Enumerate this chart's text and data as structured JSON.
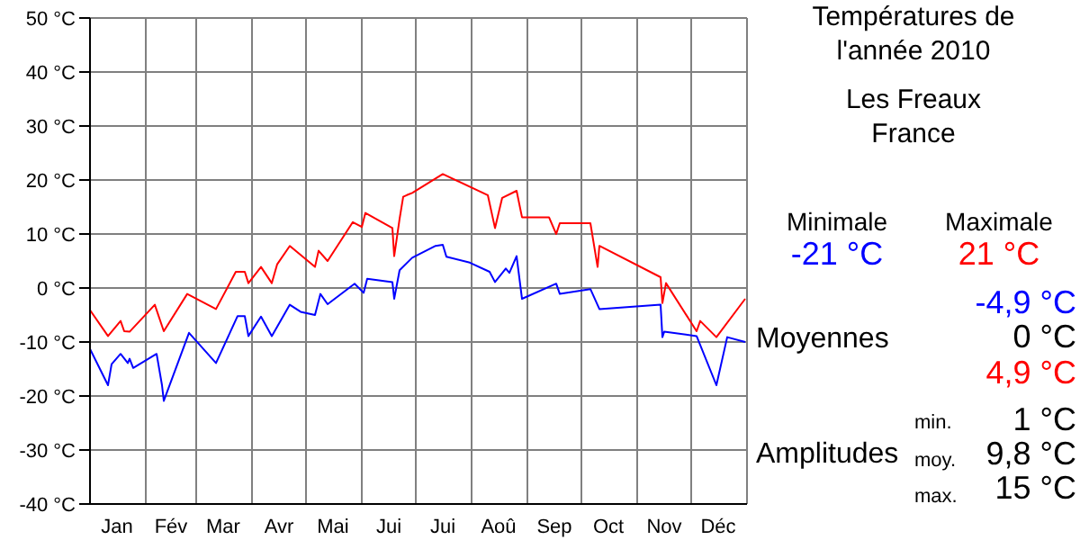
{
  "chart_data": {
    "type": "line",
    "title": "Températures de\nl'année 2010",
    "subtitle": "Les Freaux\nFrance",
    "series": [
      {
        "color": "#ff0000",
        "x": [
          "2010-01-01",
          "2010-01-11",
          "2010-01-18",
          "2010-01-20",
          "2010-01-23",
          "2010-02-06",
          "2010-02-11",
          "2010-02-24",
          "2010-03-12",
          "2010-03-23",
          "2010-03-28",
          "2010-03-30",
          "2010-04-06",
          "2010-04-12",
          "2010-04-15",
          "2010-04-22",
          "2010-05-06",
          "2010-05-08",
          "2010-05-13",
          "2010-05-27",
          "2010-06-01",
          "2010-06-03",
          "2010-06-18",
          "2010-06-19",
          "2010-06-22",
          "2010-06-24",
          "2010-06-26",
          "2010-06-29",
          "2010-07-16",
          "2010-08-10",
          "2010-08-14",
          "2010-08-18",
          "2010-08-26",
          "2010-08-29",
          "2010-09-13",
          "2010-09-17",
          "2010-09-19",
          "2010-10-06",
          "2010-10-10",
          "2010-10-11",
          "2010-11-14",
          "2010-11-15",
          "2010-11-17",
          "2010-12-04",
          "2010-12-06",
          "2010-12-15",
          "2010-12-31"
        ],
        "values": [
          -4.1,
          -8.9,
          -6.1,
          -8,
          -8.1,
          -3.1,
          -8,
          -1.1,
          -3.9,
          3,
          3,
          0.9,
          3.9,
          0.9,
          4.4,
          7.8,
          3.9,
          6.9,
          5,
          12.2,
          11.3,
          13.9,
          11.1,
          5.9,
          12.8,
          16.9,
          17.2,
          17.6,
          21.1,
          17.2,
          11.1,
          16.7,
          18,
          13.1,
          13.1,
          10,
          12,
          12,
          3.9,
          7.8,
          2,
          -2.8,
          0.9,
          -8,
          -6.1,
          -9.1,
          -2
        ]
      },
      {
        "color": "#0000ff",
        "x": [
          "2010-01-01",
          "2010-01-11",
          "2010-01-13",
          "2010-01-18",
          "2010-01-22",
          "2010-01-23",
          "2010-01-25",
          "2010-02-07",
          "2010-02-10",
          "2010-02-11",
          "2010-02-25",
          "2010-03-12",
          "2010-03-24",
          "2010-03-28",
          "2010-03-30",
          "2010-04-06",
          "2010-04-12",
          "2010-04-22",
          "2010-04-28",
          "2010-05-06",
          "2010-05-09",
          "2010-05-13",
          "2010-05-28",
          "2010-06-02",
          "2010-06-04",
          "2010-06-18",
          "2010-06-19",
          "2010-06-22",
          "2010-06-29",
          "2010-07-12",
          "2010-07-16",
          "2010-07-18",
          "2010-07-31",
          "2010-08-11",
          "2010-08-14",
          "2010-08-20",
          "2010-08-22",
          "2010-08-26",
          "2010-08-29",
          "2010-09-17",
          "2010-09-19",
          "2010-10-06",
          "2010-10-11",
          "2010-11-14",
          "2010-11-15",
          "2010-11-16",
          "2010-12-04",
          "2010-12-15",
          "2010-12-21",
          "2010-12-31"
        ],
        "values": [
          -11.3,
          -18,
          -14.1,
          -12.2,
          -13.9,
          -13.1,
          -14.8,
          -12.2,
          -18,
          -20.9,
          -8.3,
          -13.9,
          -5.2,
          -5.2,
          -8.9,
          -5.3,
          -8.9,
          -3.1,
          -4.4,
          -5,
          -1.1,
          -3,
          0.8,
          -0.9,
          1.7,
          1.1,
          -2,
          3.3,
          5.6,
          7.8,
          8,
          5.8,
          4.7,
          3,
          1.1,
          3.6,
          2.8,
          5.9,
          -2,
          0.8,
          -1.1,
          -0.2,
          -3.9,
          -3.1,
          -9.1,
          -8.1,
          -8.9,
          -18,
          -9.1,
          -10
        ]
      }
    ],
    "xlim": [
      "2010-01-01",
      "2011-01-01"
    ],
    "xticks": [
      {
        "value": "2010-01-01",
        "label": null
      },
      {
        "value": "2010-01-16",
        "label": "Jan"
      },
      {
        "value": "2010-02-01",
        "label": null
      },
      {
        "value": "2010-02-15",
        "label": "Fév"
      },
      {
        "value": "2010-03-01",
        "label": null
      },
      {
        "value": "2010-03-16",
        "label": "Mar"
      },
      {
        "value": "2010-04-01",
        "label": null
      },
      {
        "value": "2010-04-16",
        "label": "Avr"
      },
      {
        "value": "2010-05-01",
        "label": null
      },
      {
        "value": "2010-05-16",
        "label": "Mai"
      },
      {
        "value": "2010-06-01",
        "label": null
      },
      {
        "value": "2010-06-16",
        "label": "Jui"
      },
      {
        "value": "2010-07-01",
        "label": null
      },
      {
        "value": "2010-07-16",
        "label": "Jui"
      },
      {
        "value": "2010-08-01",
        "label": null
      },
      {
        "value": "2010-08-16",
        "label": "Aoû"
      },
      {
        "value": "2010-09-01",
        "label": null
      },
      {
        "value": "2010-09-16",
        "label": "Sep"
      },
      {
        "value": "2010-10-01",
        "label": null
      },
      {
        "value": "2010-10-16",
        "label": "Oct"
      },
      {
        "value": "2010-11-01",
        "label": null
      },
      {
        "value": "2010-11-16",
        "label": "Nov"
      },
      {
        "value": "2010-12-01",
        "label": null
      },
      {
        "value": "2010-12-16",
        "label": "Déc"
      },
      {
        "value": "2011-01-01",
        "label": null
      }
    ],
    "ylim": [
      -40,
      50
    ],
    "yticks": [
      {
        "value": -40,
        "label": "-40 °C"
      },
      {
        "value": -30,
        "label": "-30 °C"
      },
      {
        "value": -20,
        "label": "-20 °C"
      },
      {
        "value": -10,
        "label": "-10 °C"
      },
      {
        "value": 0,
        "label": "0 °C"
      },
      {
        "value": 10,
        "label": "10 °C"
      },
      {
        "value": 20,
        "label": "20 °C"
      },
      {
        "value": 30,
        "label": "30 °C"
      },
      {
        "value": 40,
        "label": "40 °C"
      },
      {
        "value": 50,
        "label": "50 °C"
      }
    ],
    "grid": true,
    "marker": "none",
    "line_style": "solid",
    "annotations": [
      "Minimale",
      "Maximale",
      "-21 °C",
      "21 °C",
      "-4,9 °C",
      "Moyennes",
      "0 °C",
      "4,9 °C",
      "Amplitudes",
      "min.",
      "1 °C",
      "moy.",
      "9,8 °C",
      "max.",
      "15 °C"
    ]
  }
}
